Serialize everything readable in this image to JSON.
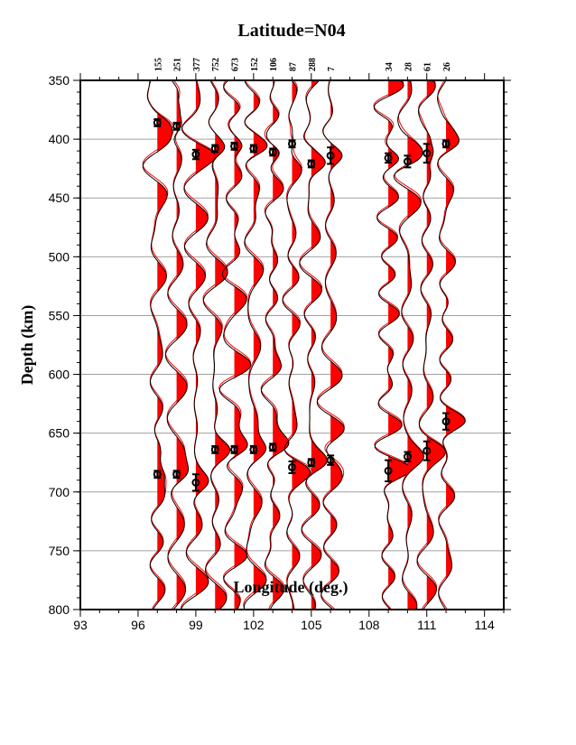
{
  "chart_data": {
    "type": "line",
    "title": "Latitude=N04",
    "xlabel": "Longitude (deg.)",
    "ylabel": "Depth (km)",
    "xlim": [
      93,
      115
    ],
    "ylim": [
      350,
      800
    ],
    "y_inverted": true,
    "grid": "horizontal",
    "xticks": [
      93,
      96,
      99,
      102,
      105,
      108,
      111,
      114
    ],
    "yticks": [
      350,
      400,
      450,
      500,
      550,
      600,
      650,
      700,
      750,
      800
    ],
    "traces": [
      {
        "lon": 97,
        "count": "155",
        "d410": 386,
        "d660": 685,
        "e410": 3,
        "e660": 3
      },
      {
        "lon": 98,
        "count": "251",
        "d410": 389,
        "d660": 685,
        "e410": 3,
        "e660": 3
      },
      {
        "lon": 99,
        "count": "377",
        "d410": 413,
        "d660": 692,
        "e410": 4,
        "e660": 7
      },
      {
        "lon": 100,
        "count": "752",
        "d410": 408,
        "d660": 664,
        "e410": 3,
        "e660": 3
      },
      {
        "lon": 101,
        "count": "673",
        "d410": 406,
        "d660": 664,
        "e410": 3,
        "e660": 3
      },
      {
        "lon": 102,
        "count": "152",
        "d410": 408,
        "d660": 664,
        "e410": 3,
        "e660": 3
      },
      {
        "lon": 103,
        "count": "106",
        "d410": 411,
        "d660": 662,
        "e410": 3,
        "e660": 3
      },
      {
        "lon": 104,
        "count": "87",
        "d410": 404,
        "d660": 679,
        "e410": 3,
        "e660": 5
      },
      {
        "lon": 105,
        "count": "288",
        "d410": 421,
        "d660": 675,
        "e410": 3,
        "e660": 3
      },
      {
        "lon": 106,
        "count": "7",
        "d410": 414,
        "d660": 673,
        "e410": 7,
        "e660": 4
      },
      {
        "lon": 109,
        "count": "34",
        "d410": 416,
        "d660": 682,
        "e410": 4,
        "e660": 9
      },
      {
        "lon": 110,
        "count": "28",
        "d410": 419,
        "d660": 670,
        "e410": 5,
        "e660": 4
      },
      {
        "lon": 111,
        "count": "61",
        "d410": 412,
        "d660": 665,
        "e410": 8,
        "e660": 8
      },
      {
        "lon": 112,
        "count": "26",
        "d410": 404,
        "d660": 640,
        "e410": 3,
        "e660": 7
      }
    ],
    "colors": {
      "positive_fill": "#ff0000",
      "trace": "#000000",
      "trace_alt": "#ff0000",
      "grid": "#a0a0a0"
    }
  }
}
